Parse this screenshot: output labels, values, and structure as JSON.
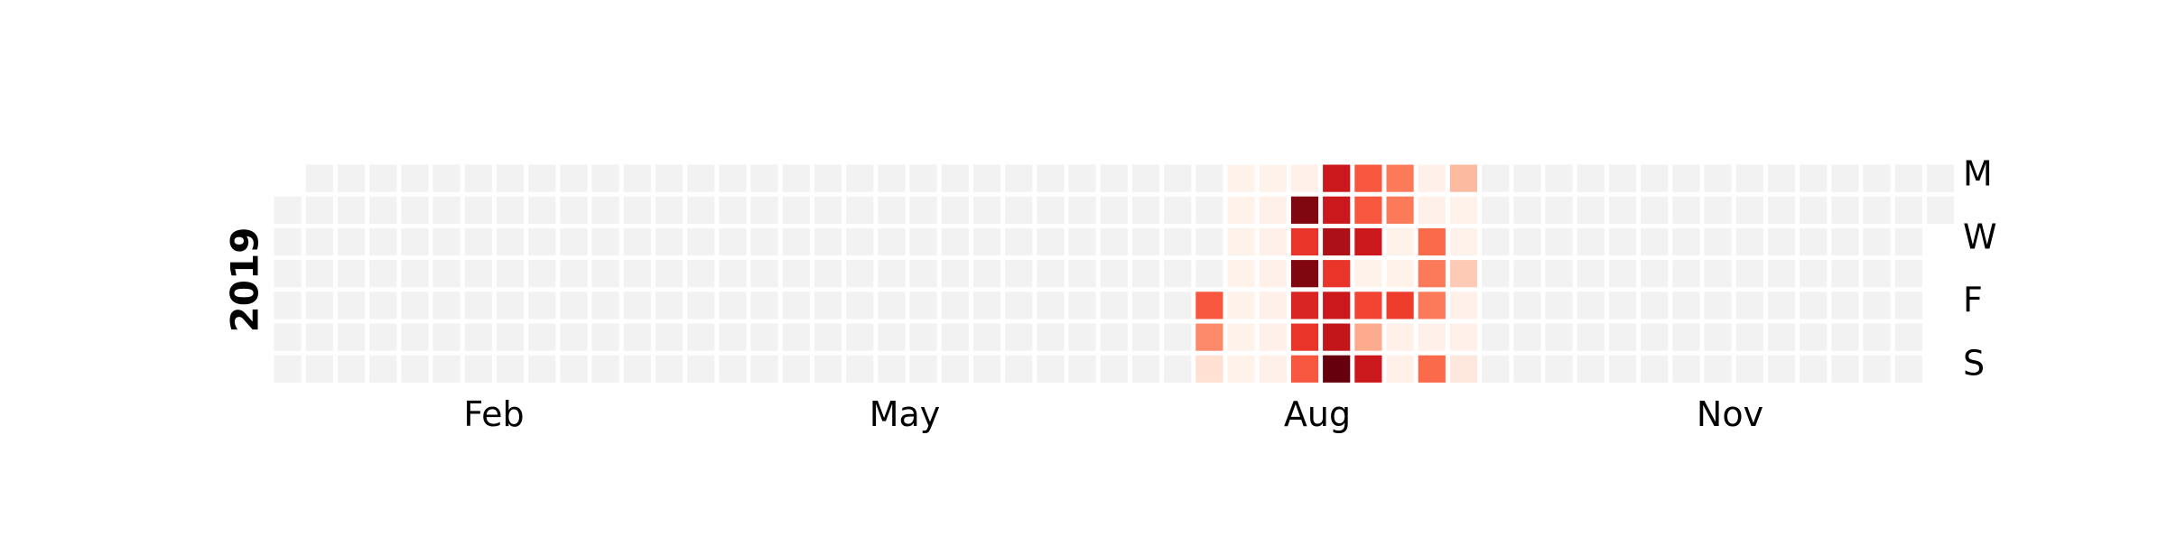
{
  "chart_data": {
    "type": "heatmap",
    "variant": "calendar",
    "year_label": "2019",
    "colormap": "Reds",
    "empty_color": "#f2f2f2",
    "cell_border_color": "#ffffff",
    "x_tick_labels": [
      "Feb",
      "May",
      "Aug",
      "Nov"
    ],
    "y_tick_labels": [
      "M",
      "W",
      "F",
      "S"
    ],
    "y_tick_side": "right",
    "weeks": 53,
    "first_weekday_row": 1,
    "days_in_year": 365,
    "value_range": [
      0,
      1
    ],
    "active_weeks": [
      {
        "week": 29,
        "values": [
          null,
          null,
          null,
          null,
          0.55,
          0.4,
          0.12
        ]
      },
      {
        "week": 30,
        "values": [
          0.02,
          0.02,
          0.02,
          0.02,
          0.02,
          0.02,
          0.02
        ]
      },
      {
        "week": 31,
        "values": [
          0.02,
          0.03,
          0.03,
          0.03,
          0.03,
          0.03,
          0.03
        ]
      },
      {
        "week": 32,
        "values": [
          0.03,
          0.95,
          0.65,
          0.95,
          0.7,
          0.65,
          0.55
        ]
      },
      {
        "week": 33,
        "values": [
          0.75,
          0.75,
          0.85,
          0.65,
          0.75,
          0.78,
          1.0
        ]
      },
      {
        "week": 34,
        "values": [
          0.55,
          0.55,
          0.75,
          0.02,
          0.6,
          0.3,
          0.75
        ]
      },
      {
        "week": 35,
        "values": [
          0.45,
          0.45,
          0.02,
          0.02,
          0.62,
          0.03,
          0.03
        ]
      },
      {
        "week": 36,
        "values": [
          0.03,
          0.03,
          0.5,
          0.45,
          0.45,
          0.03,
          0.5
        ]
      },
      {
        "week": 37,
        "values": [
          0.25,
          0.02,
          0.02,
          0.2,
          0.03,
          0.03,
          0.08
        ]
      }
    ]
  }
}
